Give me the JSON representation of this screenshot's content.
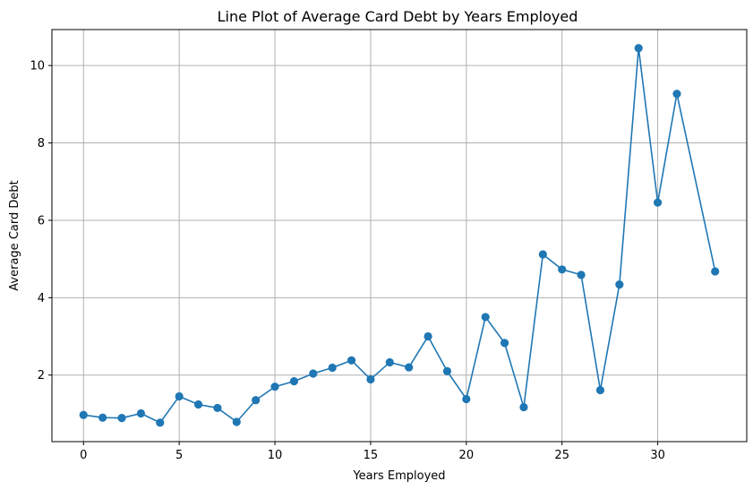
{
  "chart_data": {
    "type": "line",
    "title": "Line Plot of Average Card Debt by Years Employed",
    "xlabel": "Years Employed",
    "ylabel": "Average Card Debt",
    "xlim": [
      -1.65,
      34.65
    ],
    "ylim": [
      0.28,
      10.93
    ],
    "xticks": [
      0,
      5,
      10,
      15,
      20,
      25,
      30
    ],
    "yticks": [
      2,
      4,
      6,
      8,
      10
    ],
    "grid": true,
    "series": [
      {
        "color": "#1f77b4",
        "marker": "circle",
        "x": [
          0,
          1,
          2,
          3,
          4,
          5,
          6,
          7,
          8,
          9,
          10,
          11,
          12,
          13,
          14,
          15,
          16,
          17,
          18,
          19,
          20,
          21,
          22,
          23,
          24,
          25,
          26,
          27,
          28,
          29,
          30,
          31,
          33
        ],
        "values": [
          0.97,
          0.9,
          0.89,
          1.01,
          0.77,
          1.45,
          1.24,
          1.15,
          0.79,
          1.35,
          1.7,
          1.84,
          2.04,
          2.19,
          2.38,
          1.89,
          2.33,
          2.2,
          3.0,
          2.1,
          1.38,
          3.5,
          2.83,
          1.17,
          5.12,
          4.73,
          4.59,
          1.61,
          4.34,
          10.45,
          6.46,
          9.27,
          4.68
        ]
      }
    ]
  }
}
